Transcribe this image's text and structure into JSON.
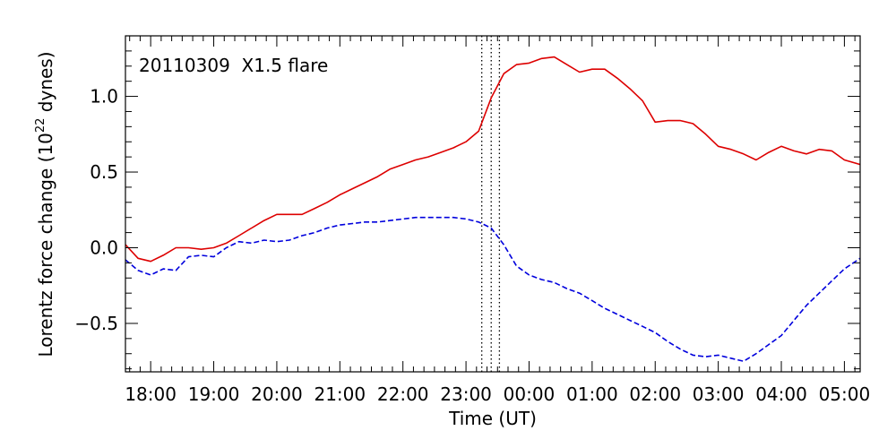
{
  "chart_data": {
    "type": "line",
    "annotation": "20110309  X1.5 flare",
    "xlabel": "Time (UT)",
    "ylabel_prefix": "Lorentz force change (10",
    "ylabel_exp": "22",
    "ylabel_suffix": " dynes)",
    "xlim": [
      17.6,
      29.25
    ],
    "ylim": [
      -0.82,
      1.4
    ],
    "x_ticks": [
      {
        "value": 18,
        "label": "18:00"
      },
      {
        "value": 19,
        "label": "19:00"
      },
      {
        "value": 20,
        "label": "20:00"
      },
      {
        "value": 21,
        "label": "21:00"
      },
      {
        "value": 22,
        "label": "22:00"
      },
      {
        "value": 23,
        "label": "23:00"
      },
      {
        "value": 24,
        "label": "00:00"
      },
      {
        "value": 25,
        "label": "01:00"
      },
      {
        "value": 26,
        "label": "02:00"
      },
      {
        "value": 27,
        "label": "03:00"
      },
      {
        "value": 28,
        "label": "04:00"
      },
      {
        "value": 29,
        "label": "05:00"
      }
    ],
    "y_ticks": [
      {
        "value": -0.5,
        "label": "−0.5"
      },
      {
        "value": 0.0,
        "label": "0.0"
      },
      {
        "value": 0.5,
        "label": "0.5"
      },
      {
        "value": 1.0,
        "label": "1.0"
      }
    ],
    "vlines": [
      23.25,
      23.4,
      23.53
    ],
    "series": [
      {
        "color": "#dd0000",
        "dash": "solid",
        "x": [
          17.6,
          17.8,
          18.0,
          18.2,
          18.4,
          18.6,
          18.8,
          19.0,
          19.2,
          19.4,
          19.6,
          19.8,
          20.0,
          20.2,
          20.4,
          20.6,
          20.8,
          21.0,
          21.2,
          21.4,
          21.6,
          21.8,
          22.0,
          22.2,
          22.4,
          22.6,
          22.8,
          23.0,
          23.2,
          23.4,
          23.6,
          23.8,
          24.0,
          24.2,
          24.4,
          24.6,
          24.8,
          25.0,
          25.2,
          25.4,
          25.6,
          25.8,
          26.0,
          26.2,
          26.4,
          26.6,
          26.8,
          27.0,
          27.2,
          27.4,
          27.6,
          27.8,
          28.0,
          28.2,
          28.4,
          28.6,
          28.8,
          29.0,
          29.25
        ],
        "y": [
          0.02,
          -0.07,
          -0.09,
          -0.05,
          0.0,
          0.0,
          -0.01,
          0.0,
          0.03,
          0.08,
          0.13,
          0.18,
          0.22,
          0.22,
          0.22,
          0.26,
          0.3,
          0.35,
          0.39,
          0.43,
          0.47,
          0.52,
          0.55,
          0.58,
          0.6,
          0.63,
          0.66,
          0.7,
          0.77,
          0.99,
          1.15,
          1.21,
          1.22,
          1.25,
          1.26,
          1.21,
          1.16,
          1.18,
          1.18,
          1.12,
          1.05,
          0.97,
          0.83,
          0.84,
          0.84,
          0.82,
          0.75,
          0.67,
          0.65,
          0.62,
          0.58,
          0.63,
          0.67,
          0.64,
          0.62,
          0.65,
          0.64,
          0.58,
          0.55
        ]
      },
      {
        "color": "#0000dd",
        "dash": "dashed",
        "x": [
          17.6,
          17.8,
          18.0,
          18.2,
          18.4,
          18.6,
          18.8,
          19.0,
          19.2,
          19.4,
          19.6,
          19.8,
          20.0,
          20.2,
          20.4,
          20.6,
          20.8,
          21.0,
          21.2,
          21.4,
          21.6,
          21.8,
          22.0,
          22.2,
          22.4,
          22.6,
          22.8,
          23.0,
          23.2,
          23.4,
          23.6,
          23.8,
          24.0,
          24.2,
          24.4,
          24.6,
          24.8,
          25.0,
          25.2,
          25.4,
          25.6,
          25.8,
          26.0,
          26.2,
          26.4,
          26.6,
          26.8,
          27.0,
          27.2,
          27.4,
          27.6,
          27.8,
          28.0,
          28.2,
          28.4,
          28.6,
          28.8,
          29.0,
          29.25
        ],
        "y": [
          -0.08,
          -0.15,
          -0.18,
          -0.14,
          -0.15,
          -0.06,
          -0.05,
          -0.06,
          0.0,
          0.04,
          0.03,
          0.05,
          0.04,
          0.05,
          0.08,
          0.1,
          0.13,
          0.15,
          0.16,
          0.17,
          0.17,
          0.18,
          0.19,
          0.2,
          0.2,
          0.2,
          0.2,
          0.19,
          0.17,
          0.13,
          0.02,
          -0.12,
          -0.18,
          -0.21,
          -0.23,
          -0.27,
          -0.3,
          -0.35,
          -0.4,
          -0.44,
          -0.48,
          -0.52,
          -0.56,
          -0.62,
          -0.67,
          -0.71,
          -0.72,
          -0.71,
          -0.73,
          -0.75,
          -0.7,
          -0.64,
          -0.58,
          -0.48,
          -0.38,
          -0.3,
          -0.22,
          -0.14,
          -0.07
        ]
      }
    ]
  }
}
